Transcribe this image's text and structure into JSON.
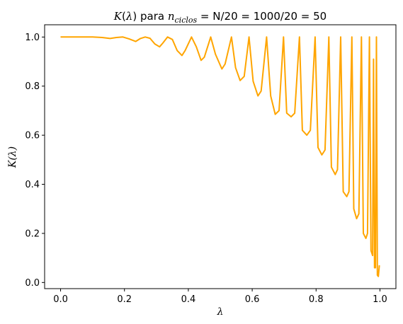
{
  "chart_data": {
    "type": "line",
    "title_parts": {
      "k": "K",
      "open": "(",
      "lambda": "λ",
      "close": ")",
      "para": " para ",
      "n": "n",
      "sub": "ciclos",
      "rest": " = N/20 = 1000/20 = 50"
    },
    "xlabel": "λ",
    "ylabel": "K(λ)",
    "xlim": [
      -0.05,
      1.05
    ],
    "ylim": [
      -0.025,
      1.05
    ],
    "xticks": [
      0.0,
      0.2,
      0.4,
      0.6,
      0.8,
      1.0
    ],
    "xtick_labels": [
      "0.0",
      "0.2",
      "0.4",
      "0.6",
      "0.8",
      "1.0"
    ],
    "yticks": [
      0.0,
      0.2,
      0.4,
      0.6,
      0.8,
      1.0
    ],
    "ytick_labels": [
      "0.0",
      "0.2",
      "0.4",
      "0.6",
      "0.8",
      "1.0"
    ],
    "grid": false,
    "series": [
      {
        "color": "#ffa500",
        "x": [
          0.0,
          0.05,
          0.1,
          0.13,
          0.155,
          0.175,
          0.195,
          0.215,
          0.235,
          0.25,
          0.265,
          0.28,
          0.295,
          0.31,
          0.32,
          0.335,
          0.35,
          0.365,
          0.38,
          0.39,
          0.41,
          0.425,
          0.44,
          0.45,
          0.47,
          0.485,
          0.505,
          0.515,
          0.535,
          0.548,
          0.562,
          0.575,
          0.59,
          0.603,
          0.618,
          0.628,
          0.645,
          0.658,
          0.672,
          0.684,
          0.698,
          0.708,
          0.722,
          0.733,
          0.748,
          0.757,
          0.771,
          0.782,
          0.797,
          0.806,
          0.818,
          0.828,
          0.84,
          0.848,
          0.86,
          0.867,
          0.877,
          0.885,
          0.896,
          0.903,
          0.912,
          0.918,
          0.927,
          0.934,
          0.942,
          0.948,
          0.956,
          0.961,
          0.967,
          0.972,
          0.977,
          0.98,
          0.983,
          0.986,
          0.989,
          0.992,
          0.995,
          0.998
        ],
        "y": [
          1.0,
          1.0,
          1.0,
          0.998,
          0.994,
          0.998,
          1.0,
          0.992,
          0.982,
          0.994,
          1.0,
          0.995,
          0.972,
          0.96,
          0.975,
          1.0,
          0.99,
          0.945,
          0.925,
          0.945,
          1.0,
          0.96,
          0.905,
          0.918,
          1.0,
          0.93,
          0.87,
          0.89,
          1.0,
          0.875,
          0.823,
          0.84,
          1.0,
          0.82,
          0.76,
          0.78,
          1.0,
          0.76,
          0.685,
          0.7,
          1.0,
          0.69,
          0.675,
          0.69,
          1.0,
          0.62,
          0.6,
          0.62,
          1.0,
          0.55,
          0.52,
          0.54,
          1.0,
          0.47,
          0.44,
          0.46,
          1.0,
          0.37,
          0.35,
          0.37,
          1.0,
          0.3,
          0.26,
          0.28,
          1.0,
          0.2,
          0.18,
          0.2,
          1.0,
          0.13,
          0.11,
          0.91,
          0.06,
          0.06,
          1.0,
          0.03,
          0.025,
          0.07
        ]
      }
    ]
  }
}
